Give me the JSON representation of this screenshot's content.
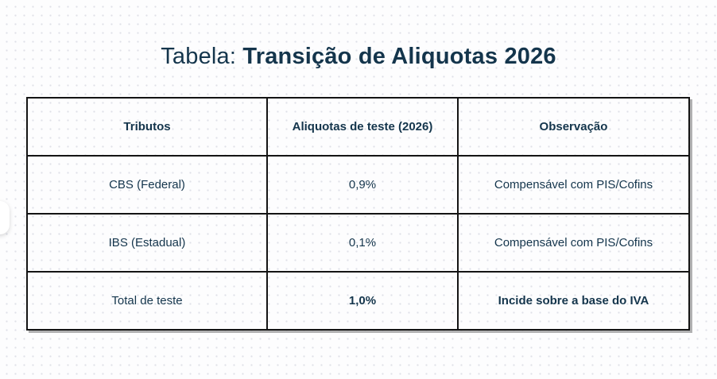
{
  "page": {
    "title_prefix": "Tabela: ",
    "title_bold": "Transição de Aliquotas 2026"
  },
  "table": {
    "headers": [
      "Tributos",
      "Aliquotas de teste (2026)",
      "Observação"
    ],
    "rows": [
      {
        "tributo": "CBS (Federal)",
        "aliquota": "0,9%",
        "observacao": "Compensável com PIS/Cofins"
      },
      {
        "tributo": "IBS (Estadual)",
        "aliquota": "0,1%",
        "observacao": "Compensável com PIS/Cofins"
      },
      {
        "tributo": "Total de teste",
        "aliquota": "1,0%",
        "observacao": "Incide sobre a base do IVA"
      }
    ]
  },
  "colors": {
    "text_navy": "#14354c",
    "table_border": "#141414",
    "background": "#fdfdfe",
    "dot_grid": "#dfe0e8",
    "shadow_gray": "#737373"
  }
}
